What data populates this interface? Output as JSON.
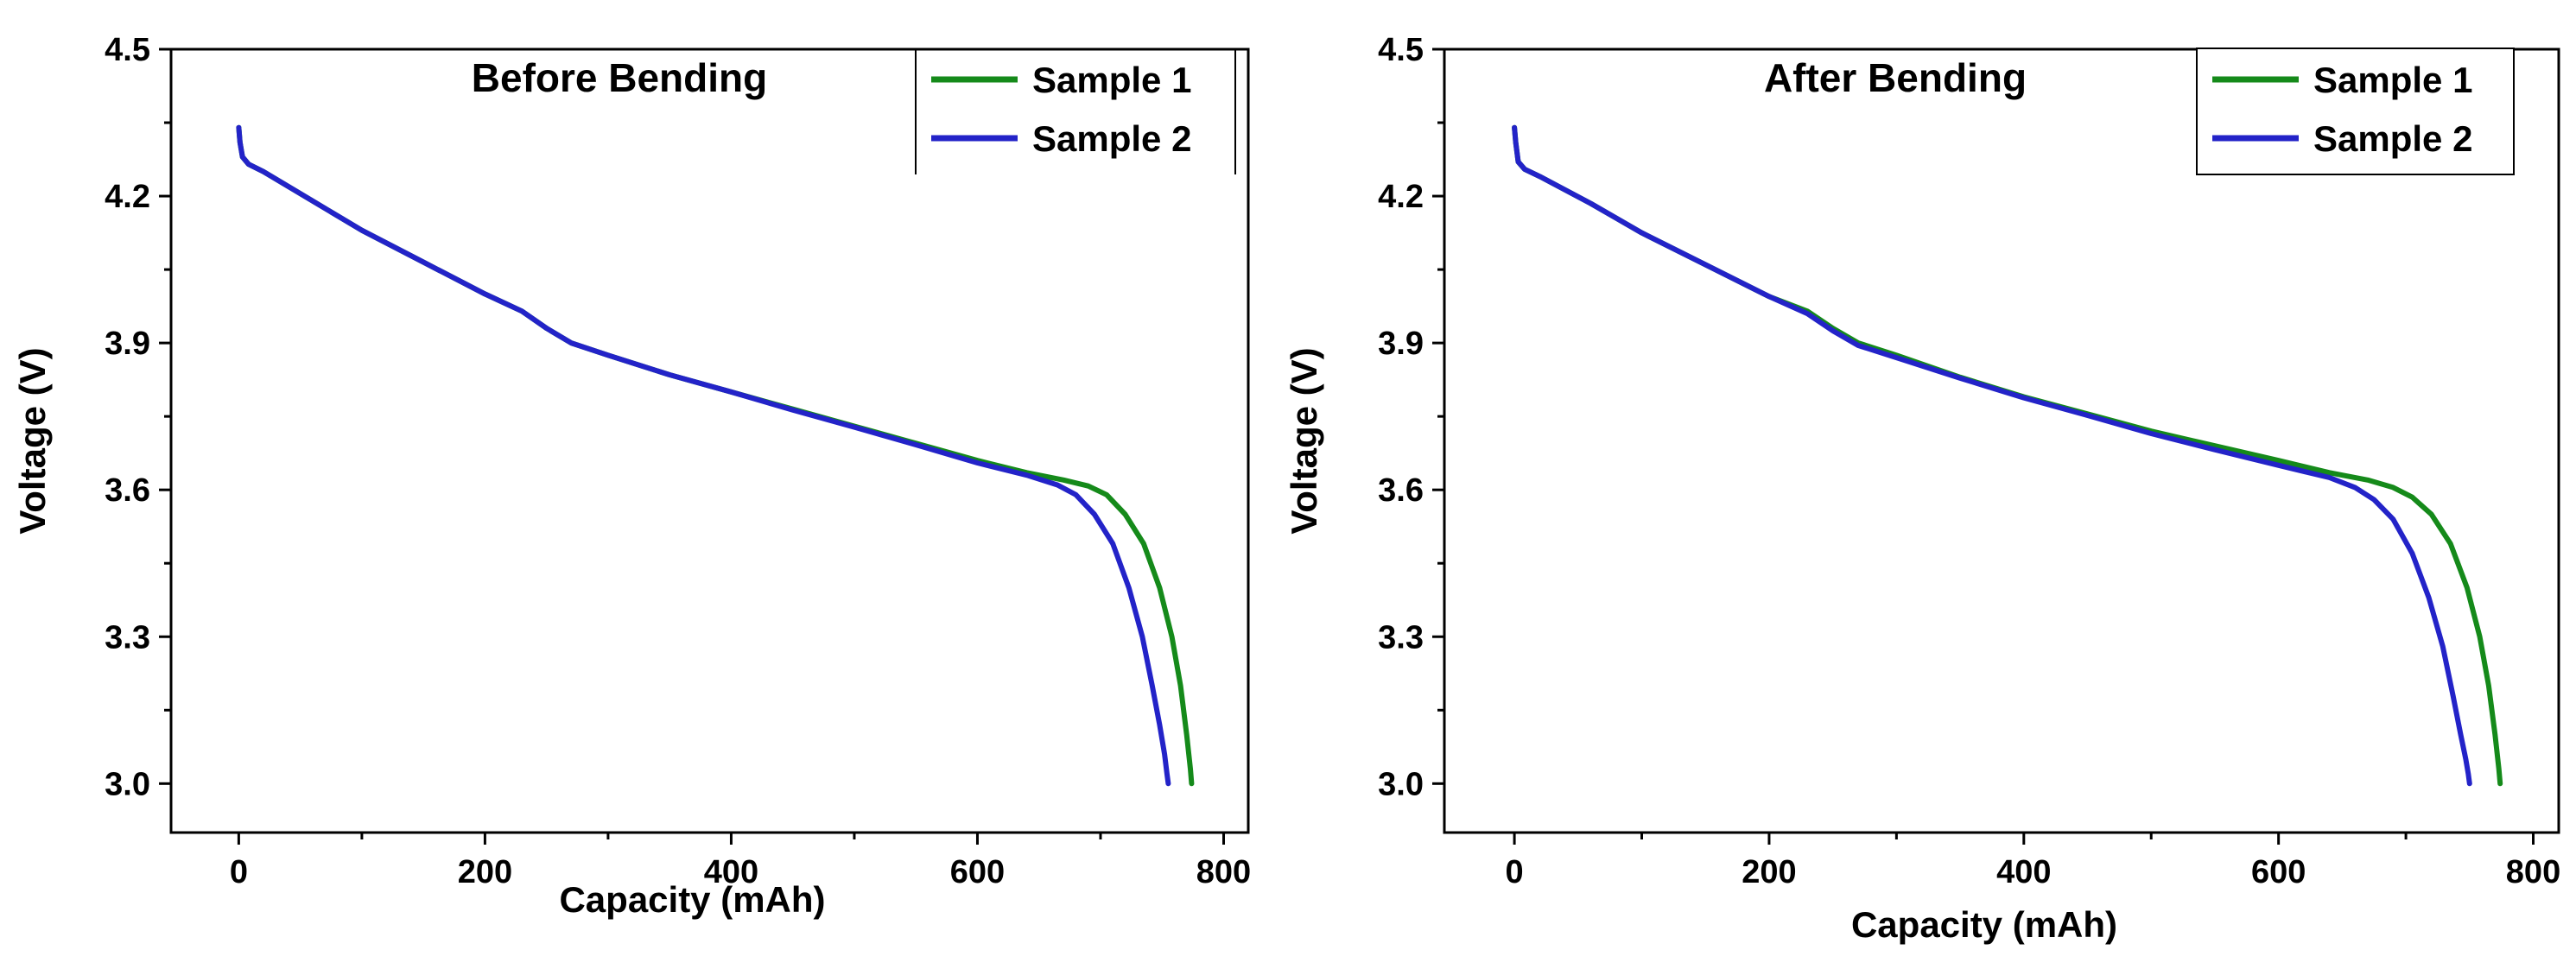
{
  "chart_data": [
    {
      "type": "line",
      "title": "Before Bending",
      "xlabel": "Capacity (mAh)",
      "ylabel": "Voltage (V)",
      "xlim": [
        -55,
        820
      ],
      "ylim": [
        2.9,
        4.5
      ],
      "xticks": [
        0,
        200,
        400,
        600,
        800
      ],
      "yticks": [
        3.0,
        3.3,
        3.6,
        3.9,
        4.2,
        4.5
      ],
      "xtick_labels": [
        "0",
        "200",
        "400",
        "600",
        "800"
      ],
      "ytick_labels": [
        "3.0",
        "3.3",
        "3.6",
        "3.9",
        "4.2",
        "4.5"
      ],
      "legend_position": "top-right",
      "series": [
        {
          "name": "Sample 1",
          "color": "#158a1a",
          "x": [
            0,
            1,
            3,
            8,
            20,
            60,
            100,
            150,
            200,
            230,
            250,
            270,
            300,
            350,
            400,
            450,
            500,
            550,
            600,
            640,
            670,
            690,
            705,
            720,
            735,
            748,
            758,
            765,
            770,
            773,
            774
          ],
          "y": [
            4.34,
            4.31,
            4.28,
            4.265,
            4.25,
            4.19,
            4.13,
            4.065,
            4.0,
            3.965,
            3.93,
            3.9,
            3.875,
            3.835,
            3.8,
            3.765,
            3.73,
            3.695,
            3.66,
            3.635,
            3.62,
            3.608,
            3.59,
            3.55,
            3.49,
            3.4,
            3.3,
            3.2,
            3.1,
            3.03,
            3.0
          ]
        },
        {
          "name": "Sample 2",
          "color": "#2323c8",
          "x": [
            0,
            1,
            3,
            8,
            20,
            60,
            100,
            150,
            200,
            230,
            250,
            270,
            300,
            350,
            400,
            450,
            500,
            550,
            600,
            640,
            665,
            680,
            695,
            710,
            723,
            734,
            742,
            748,
            752,
            754,
            755
          ],
          "y": [
            4.34,
            4.31,
            4.28,
            4.265,
            4.25,
            4.19,
            4.13,
            4.065,
            4.0,
            3.965,
            3.93,
            3.9,
            3.875,
            3.835,
            3.8,
            3.763,
            3.728,
            3.692,
            3.655,
            3.63,
            3.61,
            3.59,
            3.55,
            3.49,
            3.4,
            3.3,
            3.2,
            3.12,
            3.06,
            3.02,
            3.0
          ]
        }
      ]
    },
    {
      "type": "line",
      "title": "After Bending",
      "xlabel": "Capacity (mAh)",
      "ylabel": "Voltage (V)",
      "xlim": [
        -55,
        820
      ],
      "ylim": [
        2.9,
        4.5
      ],
      "xticks": [
        0,
        200,
        400,
        600,
        800
      ],
      "yticks": [
        3.0,
        3.3,
        3.6,
        3.9,
        4.2,
        4.5
      ],
      "xtick_labels": [
        "0",
        "200",
        "400",
        "600",
        "800"
      ],
      "ytick_labels": [
        "3.0",
        "3.3",
        "3.6",
        "3.9",
        "4.2",
        "4.5"
      ],
      "legend_position": "top-right",
      "series": [
        {
          "name": "Sample 1",
          "color": "#158a1a",
          "x": [
            0,
            1,
            3,
            8,
            20,
            60,
            100,
            150,
            200,
            230,
            250,
            270,
            300,
            350,
            400,
            450,
            500,
            550,
            600,
            640,
            670,
            690,
            705,
            720,
            735,
            748,
            758,
            765,
            770,
            773,
            774
          ],
          "y": [
            4.34,
            4.31,
            4.27,
            4.255,
            4.24,
            4.185,
            4.125,
            4.06,
            3.995,
            3.965,
            3.93,
            3.9,
            3.875,
            3.83,
            3.79,
            3.755,
            3.72,
            3.69,
            3.66,
            3.635,
            3.62,
            3.605,
            3.585,
            3.55,
            3.49,
            3.4,
            3.3,
            3.2,
            3.1,
            3.03,
            3.0
          ]
        },
        {
          "name": "Sample 2",
          "color": "#2323c8",
          "x": [
            0,
            1,
            3,
            8,
            20,
            60,
            100,
            150,
            200,
            230,
            250,
            270,
            300,
            350,
            400,
            450,
            500,
            550,
            600,
            640,
            660,
            675,
            690,
            705,
            718,
            729,
            737,
            743,
            747,
            749,
            750
          ],
          "y": [
            4.34,
            4.31,
            4.27,
            4.255,
            4.24,
            4.185,
            4.125,
            4.06,
            3.995,
            3.96,
            3.925,
            3.895,
            3.87,
            3.828,
            3.788,
            3.752,
            3.715,
            3.682,
            3.65,
            3.625,
            3.605,
            3.58,
            3.54,
            3.47,
            3.38,
            3.28,
            3.18,
            3.1,
            3.05,
            3.02,
            3.0
          ]
        }
      ]
    }
  ]
}
